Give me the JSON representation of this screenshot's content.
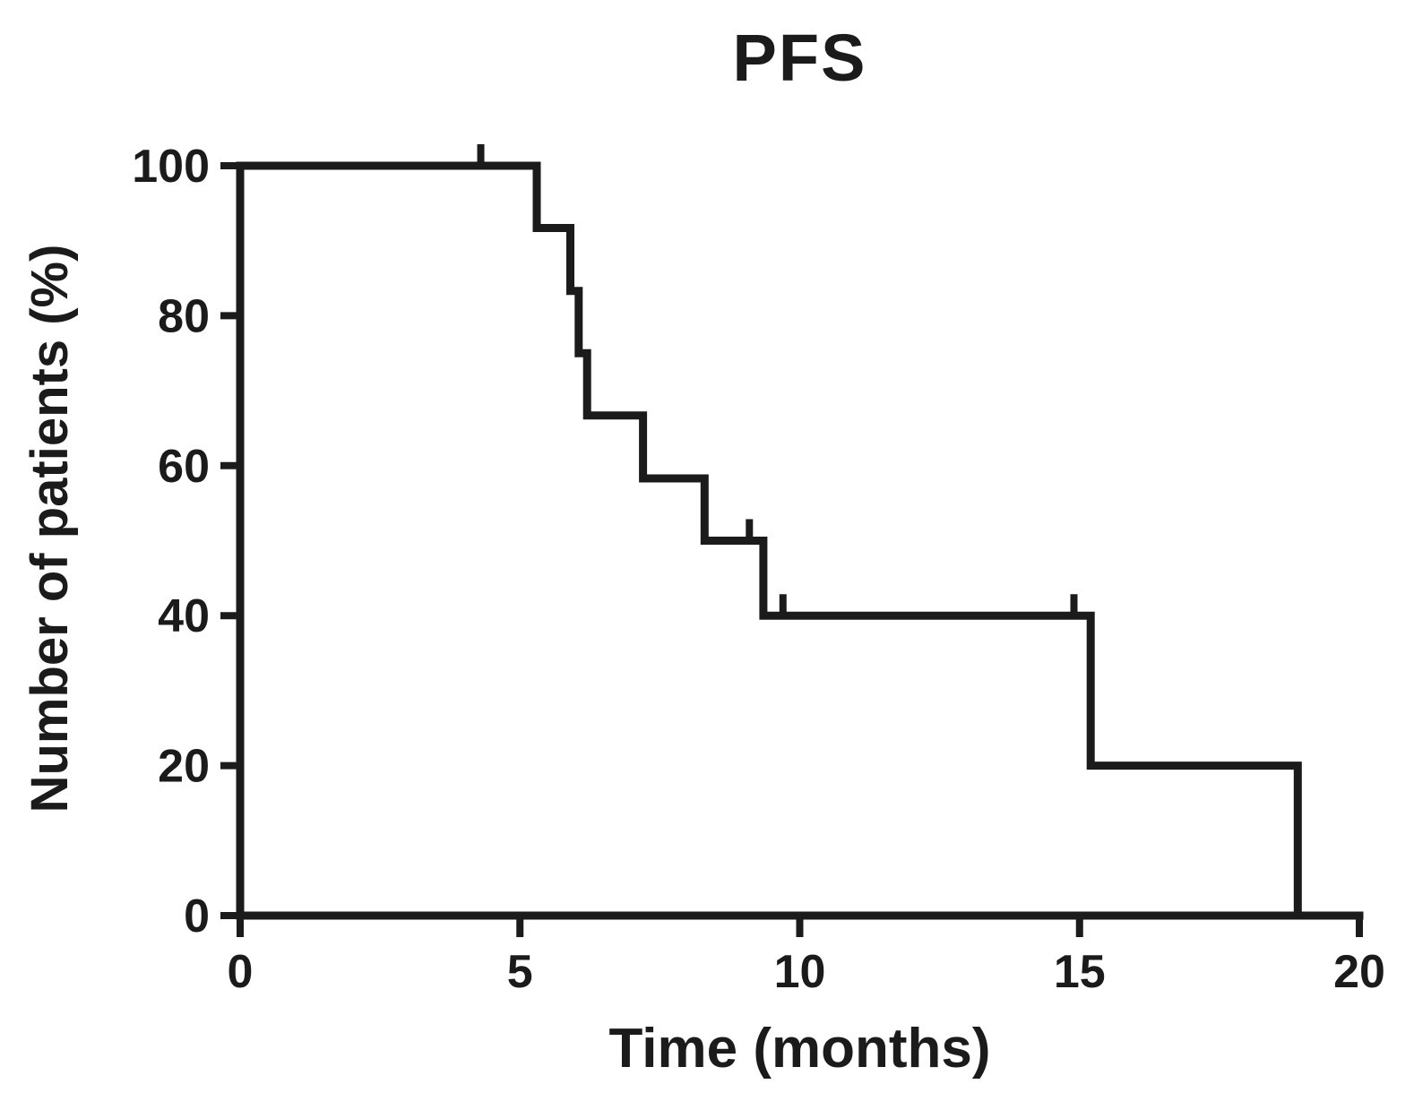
{
  "figure": {
    "background": "#ffffff"
  },
  "chart_data": {
    "type": "line",
    "subtype": "kaplan-meier-step",
    "title": "PFS",
    "xlabel": "Time (months)",
    "ylabel": "Number of patients (%)",
    "xlim": [
      0,
      20
    ],
    "ylim": [
      0,
      100
    ],
    "xticks": [
      0,
      5,
      10,
      15,
      20
    ],
    "yticks": [
      0,
      20,
      40,
      60,
      80,
      100
    ],
    "grid": false,
    "legend": null,
    "series": [
      {
        "name": "PFS",
        "color": "#1b1b1b",
        "step_points": [
          [
            0,
            100
          ],
          [
            5.3,
            100
          ],
          [
            5.3,
            91.7
          ],
          [
            5.9,
            91.7
          ],
          [
            5.9,
            83.3
          ],
          [
            6.05,
            83.3
          ],
          [
            6.05,
            75
          ],
          [
            6.2,
            75
          ],
          [
            6.2,
            66.7
          ],
          [
            7.2,
            66.7
          ],
          [
            7.2,
            58.3
          ],
          [
            8.3,
            58.3
          ],
          [
            8.3,
            50
          ],
          [
            9.35,
            50
          ],
          [
            9.35,
            40
          ],
          [
            15.2,
            40
          ],
          [
            15.2,
            20
          ],
          [
            18.9,
            20
          ],
          [
            18.9,
            0
          ]
        ],
        "censor_marks": [
          [
            4.3,
            100
          ],
          [
            9.1,
            50
          ],
          [
            9.7,
            40
          ],
          [
            14.9,
            40
          ]
        ]
      }
    ]
  },
  "colors": {
    "curve": "#1b1b1b",
    "axis": "#1b1b1b",
    "text": "#1b1b1b",
    "background": "#ffffff"
  }
}
